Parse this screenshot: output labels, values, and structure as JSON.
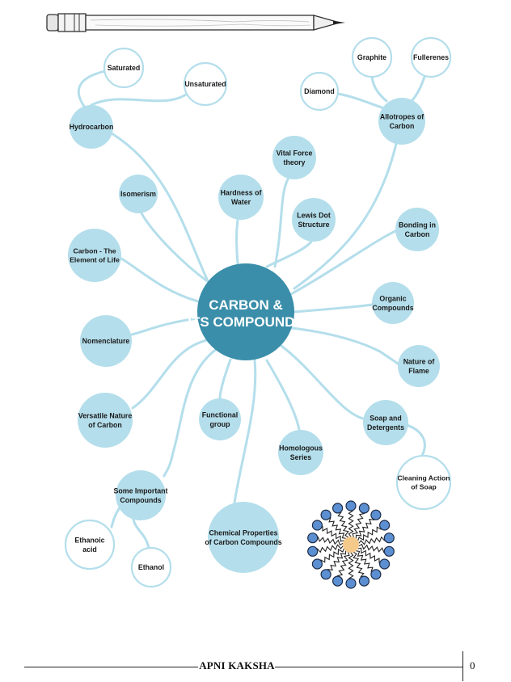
{
  "center": {
    "line1": "CARBON &",
    "line2": "ITS COMPOUNDS"
  },
  "nodes": [
    {
      "id": "hydrocarbon",
      "lines": [
        "Hydrocarbon"
      ],
      "style": "filled"
    },
    {
      "id": "saturated",
      "lines": [
        "Saturated"
      ],
      "style": "outline"
    },
    {
      "id": "unsaturated",
      "lines": [
        "Unsaturated"
      ],
      "style": "outline"
    },
    {
      "id": "graphite",
      "lines": [
        "Graphite"
      ],
      "style": "outline"
    },
    {
      "id": "fullerenes",
      "lines": [
        "Fullerenes"
      ],
      "style": "outline"
    },
    {
      "id": "diamond",
      "lines": [
        "Diamond"
      ],
      "style": "outline"
    },
    {
      "id": "allotropes",
      "lines": [
        "Allotropes of",
        "Carbon"
      ],
      "style": "filled"
    },
    {
      "id": "vital-force",
      "lines": [
        "Vital Force",
        "theory"
      ],
      "style": "filled"
    },
    {
      "id": "isomerism",
      "lines": [
        "Isomerism"
      ],
      "style": "filled"
    },
    {
      "id": "hardness-water",
      "lines": [
        "Hardness of",
        "Water"
      ],
      "style": "filled"
    },
    {
      "id": "lewis-dot",
      "lines": [
        "Lewis Dot",
        "Structure"
      ],
      "style": "filled"
    },
    {
      "id": "bonding",
      "lines": [
        "Bonding in",
        "Carbon"
      ],
      "style": "filled"
    },
    {
      "id": "carbon-element",
      "lines": [
        "Carbon - The",
        "Element of Life"
      ],
      "style": "filled"
    },
    {
      "id": "organic",
      "lines": [
        "Organic",
        "Compounds"
      ],
      "style": "filled"
    },
    {
      "id": "nomenclature",
      "lines": [
        "Nomenclature"
      ],
      "style": "filled"
    },
    {
      "id": "nature-flame",
      "lines": [
        "Nature of",
        "Flame"
      ],
      "style": "filled"
    },
    {
      "id": "versatile",
      "lines": [
        "Versatile Nature",
        "of Carbon"
      ],
      "style": "filled"
    },
    {
      "id": "functional",
      "lines": [
        "Functional",
        "group"
      ],
      "style": "filled"
    },
    {
      "id": "soap-detergents",
      "lines": [
        "Soap and",
        "Detergents"
      ],
      "style": "filled"
    },
    {
      "id": "homologous",
      "lines": [
        "Homologous",
        "Series"
      ],
      "style": "filled"
    },
    {
      "id": "cleaning-action",
      "lines": [
        "Cleaning Action",
        "of Soap"
      ],
      "style": "outline"
    },
    {
      "id": "important-compounds",
      "lines": [
        "Some Important",
        "Compounds"
      ],
      "style": "filled"
    },
    {
      "id": "chemical-properties",
      "lines": [
        "Chemical Properties",
        "of Carbon Compounds"
      ],
      "style": "filled"
    },
    {
      "id": "ethanoic",
      "lines": [
        "Ethanoic",
        "acid"
      ],
      "style": "outline"
    },
    {
      "id": "ethanol",
      "lines": [
        "Ethanol"
      ],
      "style": "outline"
    }
  ],
  "footer": {
    "brand": "APNI KAKSHA",
    "page_number": "0"
  },
  "colors": {
    "center_fill": "#3a8eaa",
    "node_fill": "#b4deeb",
    "outline_stroke": "#b4deeb",
    "connector": "#b4deeb",
    "center_text": "#ffffff",
    "micelle_head": "#5b8fd1",
    "micelle_core": "#f4c98a"
  },
  "icons": [
    "pencil-icon",
    "soap-micelle-icon"
  ]
}
